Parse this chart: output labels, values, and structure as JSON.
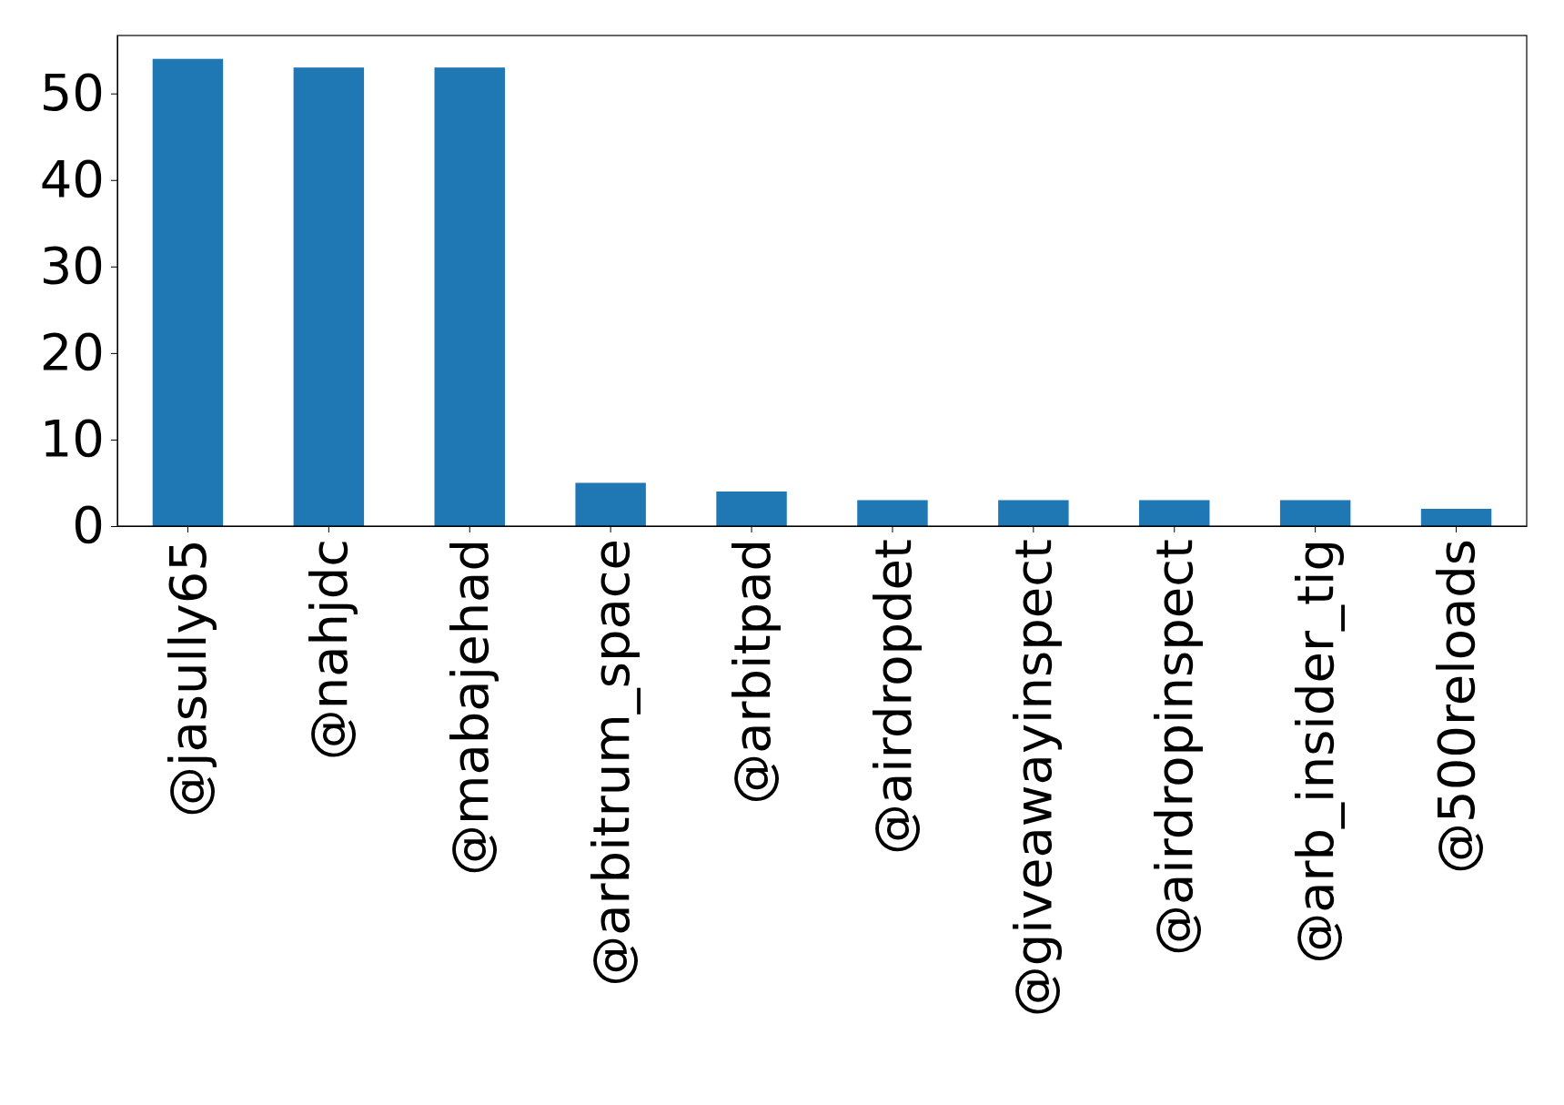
{
  "chart_data": {
    "type": "bar",
    "categories": [
      "@jasully65",
      "@nahjdc",
      "@mabajehad",
      "@arbitrum_space",
      "@arbitpad",
      "@airdropdet",
      "@giveawayinspect",
      "@airdropinspect",
      "@arb_insider_tig",
      "@500reloads"
    ],
    "values": [
      54,
      53,
      53,
      5,
      4,
      3,
      3,
      3,
      3,
      2
    ],
    "color": "#1f77b4",
    "ylim": [
      0,
      56.7
    ],
    "yticks": [
      0,
      10,
      20,
      30,
      40,
      50
    ]
  }
}
